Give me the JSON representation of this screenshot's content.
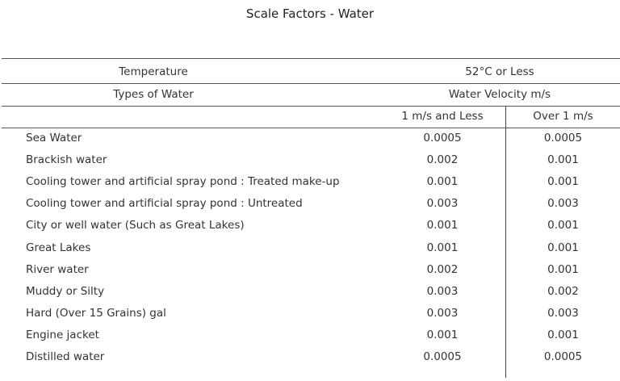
{
  "title": "Scale Factors - Water",
  "header": {
    "temperature_label": "Temperature",
    "temperature_value": "52°C or Less",
    "types_label": "Types of Water",
    "velocity_label": "Water Velocity m/s",
    "col1": "1 m/s and Less",
    "col2": "Over 1 m/s"
  },
  "rows": [
    {
      "type": "Sea Water",
      "v1": "0.0005",
      "v2": "0.0005"
    },
    {
      "type": "Brackish water",
      "v1": "0.002",
      "v2": "0.001"
    },
    {
      "type": "Cooling tower and artificial spray pond : Treated make-up",
      "v1": "0.001",
      "v2": "0.001"
    },
    {
      "type": "Cooling tower and artificial spray pond : Untreated",
      "v1": "0.003",
      "v2": "0.003"
    },
    {
      "type": "City or well water (Such as Great Lakes)",
      "v1": "0.001",
      "v2": "0.001"
    },
    {
      "type": "Great Lakes",
      "v1": "0.001",
      "v2": "0.001"
    },
    {
      "type": "River water",
      "v1": "0.002",
      "v2": "0.001"
    },
    {
      "type": "Muddy or Silty",
      "v1": "0.003",
      "v2": "0.002"
    },
    {
      "type": "Hard (Over 15 Grains) gal",
      "v1": "0.003",
      "v2": "0.003"
    },
    {
      "type": "Engine jacket",
      "v1": "0.001",
      "v2": "0.001"
    },
    {
      "type": "Distilled water",
      "v1": "0.0005",
      "v2": "0.0005"
    }
  ]
}
